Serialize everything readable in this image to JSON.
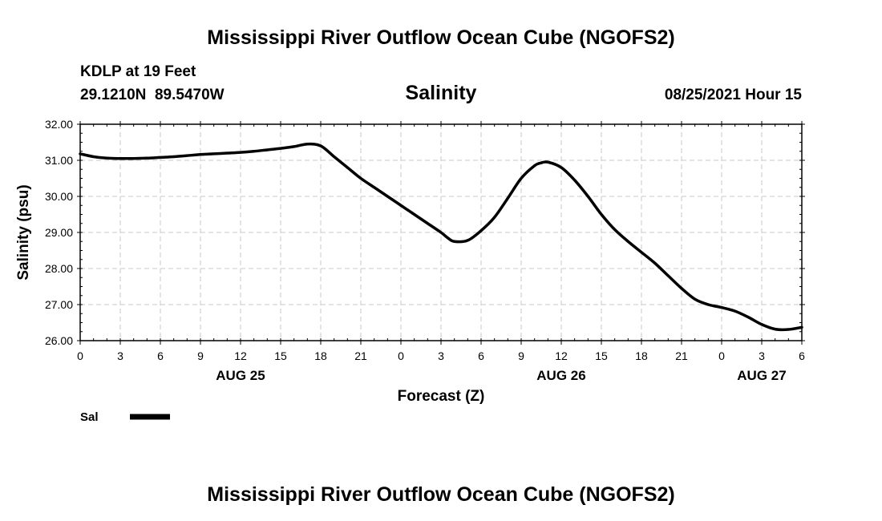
{
  "title": "Mississippi River Outflow Ocean Cube (NGOFS2)",
  "footer_title": "Mississippi River Outflow Ocean Cube (NGOFS2)",
  "station": {
    "name": "KDLP at 19 Feet",
    "coords": "29.1210N  89.5470W"
  },
  "variable_title": "Salinity",
  "run_time": "08/25/2021 Hour 15",
  "colors": {
    "line": "#000000",
    "grid": "#c8c8c8",
    "background": "#ffffff"
  },
  "chart_data": {
    "type": "line",
    "title": "Salinity",
    "xlabel": "Forecast (Z)",
    "ylabel": "Salinity (psu)",
    "xlim": [
      0,
      54
    ],
    "ylim": [
      26.0,
      32.0
    ],
    "grid": true,
    "legend_position": "bottom-left",
    "y_ticks": [
      "26.00",
      "27.00",
      "28.00",
      "29.00",
      "30.00",
      "31.00",
      "32.00"
    ],
    "x_tick_labels": [
      "0",
      "3",
      "6",
      "9",
      "12",
      "15",
      "18",
      "21",
      "0",
      "3",
      "6",
      "9",
      "12",
      "15",
      "18",
      "21",
      "0",
      "3",
      "6"
    ],
    "date_labels": [
      {
        "label": "AUG 25",
        "hour": 12
      },
      {
        "label": "AUG 26",
        "hour": 36
      },
      {
        "label": "AUG 27",
        "hour": 51
      }
    ],
    "series": [
      {
        "name": "Sal",
        "x": [
          0,
          1,
          2,
          3,
          4,
          5,
          6,
          7,
          8,
          9,
          10,
          11,
          12,
          13,
          14,
          15,
          16,
          17,
          18,
          19,
          20,
          21,
          22,
          23,
          24,
          25,
          26,
          27,
          27.5,
          28,
          29,
          30,
          31,
          32,
          33,
          34,
          34.5,
          35,
          36,
          37,
          38,
          39,
          40,
          41,
          42,
          43,
          44,
          45,
          46,
          47,
          48,
          49,
          50,
          51,
          52,
          53,
          54
        ],
        "values": [
          31.18,
          31.1,
          31.06,
          31.05,
          31.05,
          31.06,
          31.08,
          31.1,
          31.13,
          31.16,
          31.18,
          31.2,
          31.22,
          31.25,
          31.29,
          31.33,
          31.38,
          31.45,
          31.4,
          31.1,
          30.8,
          30.5,
          30.25,
          30.0,
          29.75,
          29.5,
          29.25,
          29.0,
          28.85,
          28.75,
          28.78,
          29.05,
          29.42,
          29.95,
          30.5,
          30.85,
          30.93,
          30.95,
          30.8,
          30.45,
          30.0,
          29.5,
          29.08,
          28.75,
          28.45,
          28.15,
          27.8,
          27.45,
          27.15,
          27.0,
          26.92,
          26.82,
          26.65,
          26.45,
          26.32,
          26.31,
          26.37
        ]
      }
    ]
  }
}
